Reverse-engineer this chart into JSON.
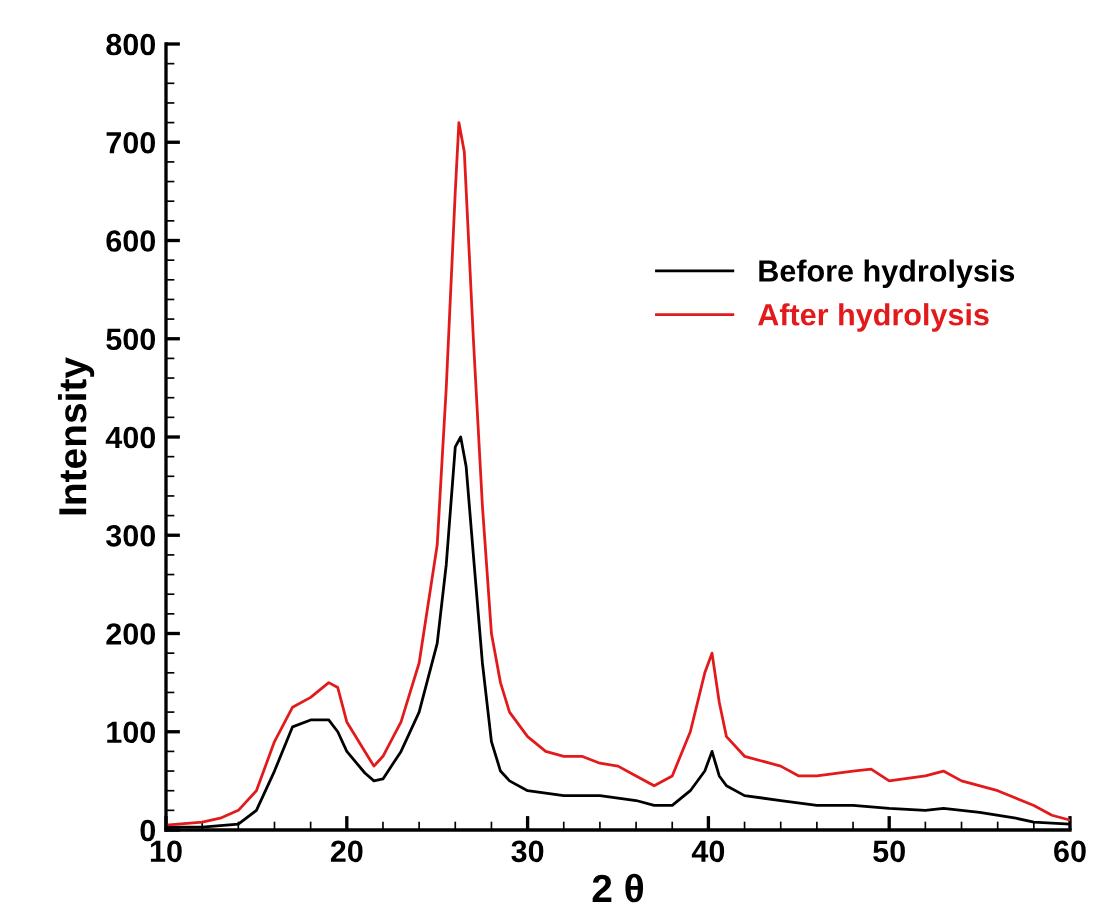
{
  "chart_data": {
    "type": "line",
    "xlabel": "2 θ",
    "ylabel": "Intensity",
    "xlim": [
      10,
      60
    ],
    "xticks": [
      10,
      20,
      30,
      40,
      50,
      60
    ],
    "ylim": [
      0,
      800
    ],
    "yticks": [
      0,
      100,
      200,
      300,
      400,
      500,
      600,
      700,
      800
    ],
    "grid": false,
    "legend": "right",
    "marker": "none",
    "line_style": "solid",
    "series": [
      {
        "name": "Before hydrolysis",
        "color": "#000000",
        "x": [
          10,
          12,
          14,
          15,
          16,
          17,
          18,
          19,
          19.5,
          20,
          21,
          21.5,
          22,
          23,
          24,
          25,
          25.5,
          26,
          26.3,
          26.6,
          27,
          27.5,
          28,
          28.5,
          29,
          30,
          32,
          34,
          36,
          37,
          38,
          39,
          39.8,
          40.2,
          40.6,
          41,
          42,
          44,
          46,
          48,
          50,
          52,
          53,
          55,
          57,
          58,
          60
        ],
        "values": [
          3,
          3,
          6,
          20,
          60,
          105,
          112,
          112,
          100,
          80,
          58,
          50,
          52,
          80,
          120,
          190,
          270,
          390,
          400,
          370,
          280,
          170,
          90,
          60,
          50,
          40,
          35,
          35,
          30,
          25,
          25,
          40,
          60,
          80,
          55,
          45,
          35,
          30,
          25,
          25,
          22,
          20,
          22,
          18,
          12,
          8,
          6
        ]
      },
      {
        "name": "After hydrolysis",
        "color": "#e31a1c",
        "x": [
          10,
          12,
          13,
          14,
          15,
          16,
          17,
          18,
          19,
          19.5,
          20,
          21,
          21.5,
          22,
          23,
          24,
          25,
          25.5,
          26,
          26.2,
          26.5,
          27,
          27.5,
          28,
          28.5,
          29,
          30,
          31,
          32,
          33,
          34,
          35,
          36,
          37,
          38,
          39,
          39.8,
          40.2,
          40.6,
          41,
          42,
          44,
          45,
          46,
          48,
          49,
          50,
          52,
          53,
          54,
          56,
          58,
          59,
          60
        ],
        "values": [
          5,
          8,
          12,
          20,
          40,
          90,
          125,
          135,
          150,
          145,
          110,
          80,
          65,
          75,
          110,
          170,
          290,
          450,
          650,
          720,
          690,
          500,
          330,
          200,
          150,
          120,
          95,
          80,
          75,
          75,
          68,
          65,
          55,
          45,
          55,
          100,
          160,
          180,
          130,
          95,
          75,
          65,
          55,
          55,
          60,
          62,
          50,
          55,
          60,
          50,
          40,
          25,
          15,
          10
        ]
      }
    ]
  }
}
